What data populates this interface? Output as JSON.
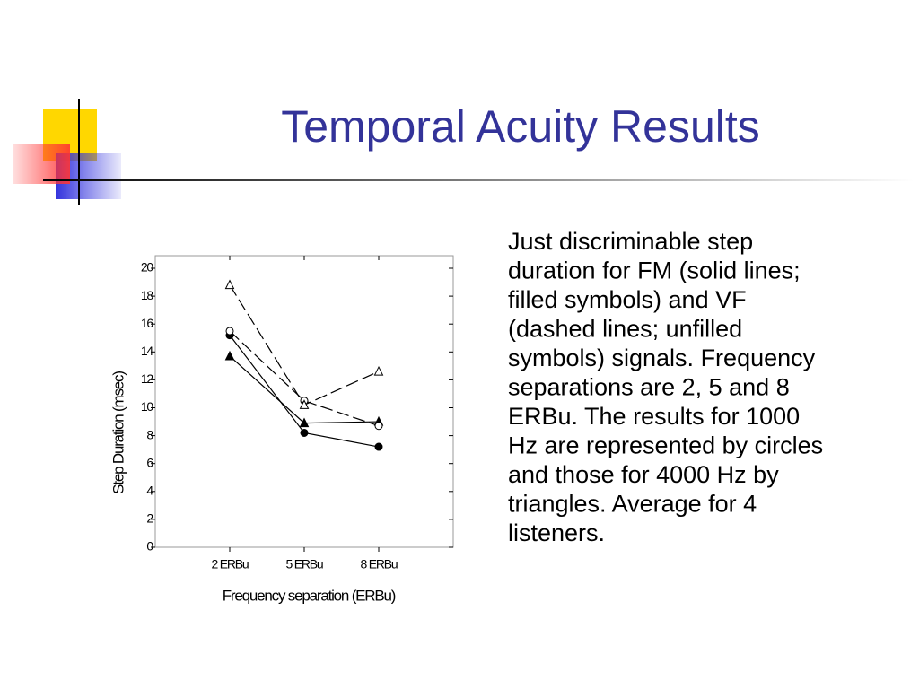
{
  "slide_title": "Temporal Acuity Results",
  "caption_lines": [
    "Just discriminable step",
    "duration for FM (solid lines;",
    "filled symbols) and VF",
    "(dashed lines; unfilled",
    "symbols) signals. Frequency",
    "separations are 2, 5 and 8",
    "ERBu. The results for 1000",
    "Hz are represented by circles",
    "and those for 4000 Hz by",
    "triangles.  Average for 4",
    "listeners."
  ],
  "chart_data": {
    "type": "line",
    "categories": [
      "2 ERBu",
      "5 ERBu",
      "8 ERBu"
    ],
    "x_label": "Frequency separation (ERBu)",
    "y_label": "Step Duration (msec)",
    "ylim": [
      0,
      20.9
    ],
    "yticks": [
      0,
      2,
      4,
      6,
      8,
      10,
      12,
      14,
      16,
      18,
      20
    ],
    "series": [
      {
        "color": "#000000",
        "marker": "circle",
        "filled": true,
        "dashed": false,
        "values": [
          15.2,
          8.2,
          7.2
        ]
      },
      {
        "color": "#000000",
        "marker": "triangle",
        "filled": true,
        "dashed": false,
        "values": [
          13.7,
          8.9,
          9.0
        ]
      },
      {
        "color": "#000000",
        "marker": "circle",
        "filled": false,
        "dashed": true,
        "values": [
          15.5,
          10.5,
          8.7
        ]
      },
      {
        "color": "#000000",
        "marker": "triangle",
        "filled": false,
        "dashed": true,
        "values": [
          18.8,
          10.2,
          12.6
        ]
      }
    ]
  }
}
